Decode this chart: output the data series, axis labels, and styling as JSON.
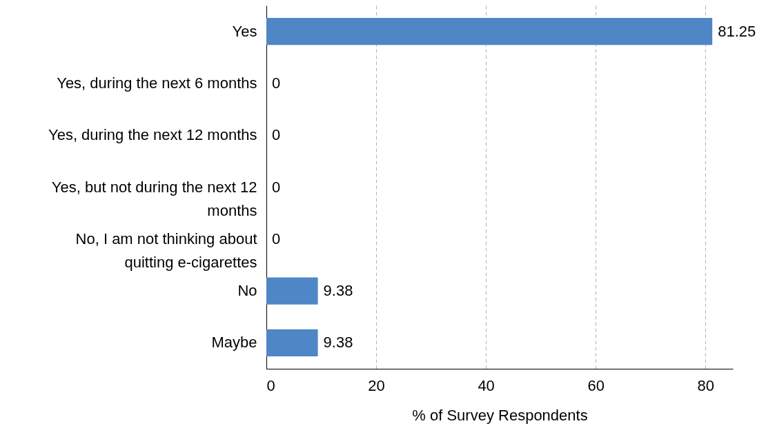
{
  "chart_data": {
    "type": "bar",
    "orientation": "horizontal",
    "xlabel": "% of Survey Respondents",
    "categories": [
      "Yes",
      "Yes, during the next 6 months",
      "Yes, during the next 12 months",
      "Yes, but not during the next 12 months",
      "No, I am not thinking about quitting e-cigarettes",
      "No",
      "Maybe"
    ],
    "values": [
      81.25,
      0,
      0,
      0,
      0,
      9.38,
      9.38
    ],
    "color": "#4e86c6",
    "xlim": [
      0,
      85
    ],
    "xticks": [
      0,
      20,
      40,
      60,
      80
    ],
    "grid": "x",
    "data_labels": true
  }
}
